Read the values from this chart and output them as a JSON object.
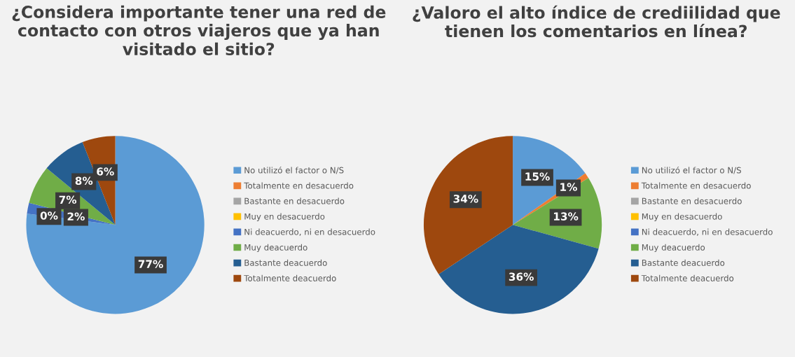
{
  "chart_data": [
    {
      "type": "pie",
      "title": "¿Considera importante tener una red de contacto con otros viajeros que ya han visitado el sitio?",
      "categories": [
        "No utilizó el factor o N/S",
        "Totalmente en desacuerdo",
        "Bastante en desacuerdo",
        "Muy en desacuerdo",
        "Ni deacuerdo, ni en desacuerdo",
        "Muy deacuerdo",
        "Bastante deacuerdo",
        "Totalmente deacuerdo"
      ],
      "values": [
        77,
        0,
        0,
        0,
        2,
        7,
        8,
        6
      ],
      "value_labels": [
        "77%",
        "0%",
        null,
        null,
        "2%",
        "7%",
        "8%",
        "6%"
      ],
      "colors": [
        "#5b9bd5",
        "#ed7d31",
        "#a5a5a5",
        "#ffc000",
        "#4472c4",
        "#70ad47",
        "#255e91",
        "#9e480e"
      ],
      "legend": "right"
    },
    {
      "type": "pie",
      "title": "¿Valoro el alto índice de crediilidad que tienen los comentarios en línea?",
      "categories": [
        "No utilizó el factor o N/S",
        "Totalmente en desacuerdo",
        "Bastante en desacuerdo",
        "Muy en desacuerdo",
        "Ni deacuerdo, ni en desacuerdo",
        "Muy deacuerdo",
        "Bastante deacuerdo",
        "Totalmente deacuerdo"
      ],
      "values": [
        15,
        1,
        0,
        0,
        0,
        13,
        36,
        34
      ],
      "value_labels": [
        "15%",
        "1%",
        null,
        null,
        null,
        "13%",
        "36%",
        "34%"
      ],
      "colors": [
        "#5b9bd5",
        "#ed7d31",
        "#a5a5a5",
        "#ffc000",
        "#4472c4",
        "#70ad47",
        "#255e91",
        "#9e480e"
      ],
      "legend": "right"
    }
  ]
}
